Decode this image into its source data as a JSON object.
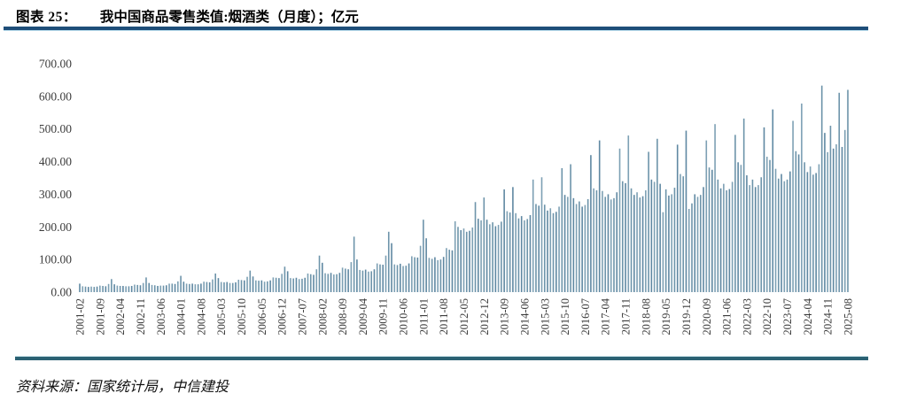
{
  "header": {
    "fig_label": "图表 25：",
    "fig_title": "我中国商品零售类值:烟酒类（月度）；亿元"
  },
  "footer": {
    "source": "资料来源：国家统计局，中信建投"
  },
  "colors": {
    "title_rule": "#1e4e79",
    "title_rule_edge": "#b9dcec",
    "bottom_rule": "#2b6173",
    "bottom_rule_edge": "#c9e3ea",
    "axis_text": "#3c3c3c"
  },
  "chart_data": {
    "type": "bar",
    "title": "我中国商品零售类值:烟酒类（月度）；亿元",
    "xlabel": "",
    "ylabel": "亿元",
    "ylim": [
      0,
      700
    ],
    "ytick_step": 100,
    "ytick_labels": [
      "0.00",
      "100.00",
      "200.00",
      "300.00",
      "400.00",
      "500.00",
      "600.00",
      "700.00"
    ],
    "grid": false,
    "legend": false,
    "xtick_every": 7,
    "xtick_labels": [
      "2001-02",
      "2001-09",
      "2002-04",
      "2002-11",
      "2003-06",
      "2004-01",
      "2004-08",
      "2005-03",
      "2005-10",
      "2006-05",
      "2006-12",
      "2007-07",
      "2008-02",
      "2008-09",
      "2009-04",
      "2009-11",
      "2010-06",
      "2011-01",
      "2011-08",
      "2012-05",
      "2012-12",
      "2013-09",
      "2014-06",
      "2015-03",
      "2015-10",
      "2016-07",
      "2017-04",
      "2017-11",
      "2018-08",
      "2019-05",
      "2019-12",
      "2020-09",
      "2021-06",
      "2022-03",
      "2022-10",
      "2023-07",
      "2024-04",
      "2024-11",
      "2025-08"
    ],
    "bar_colors": [
      "#5f88a2",
      "#7da0b4",
      "#6d94aa"
    ],
    "x": [
      "2001-02",
      "2001-03",
      "2001-04",
      "2001-05",
      "2001-06",
      "2001-07",
      "2001-08",
      "2001-09",
      "2001-10",
      "2001-11",
      "2001-12",
      "2002-01",
      "2002-02",
      "2002-03",
      "2002-04",
      "2002-05",
      "2002-06",
      "2002-07",
      "2002-08",
      "2002-09",
      "2002-10",
      "2002-11",
      "2002-12",
      "2003-01",
      "2003-02",
      "2003-03",
      "2003-04",
      "2003-05",
      "2003-06",
      "2003-07",
      "2003-08",
      "2003-09",
      "2003-10",
      "2003-11",
      "2003-12",
      "2004-01",
      "2004-02",
      "2004-03",
      "2004-04",
      "2004-05",
      "2004-06",
      "2004-07",
      "2004-08",
      "2004-09",
      "2004-10",
      "2004-11",
      "2004-12",
      "2005-01",
      "2005-02",
      "2005-03",
      "2005-04",
      "2005-05",
      "2005-06",
      "2005-07",
      "2005-08",
      "2005-09",
      "2005-10",
      "2005-11",
      "2005-12",
      "2006-01",
      "2006-02",
      "2006-03",
      "2006-04",
      "2006-05",
      "2006-06",
      "2006-07",
      "2006-08",
      "2006-09",
      "2006-10",
      "2006-11",
      "2006-12",
      "2007-01",
      "2007-02",
      "2007-03",
      "2007-04",
      "2007-05",
      "2007-06",
      "2007-07",
      "2007-08",
      "2007-09",
      "2007-10",
      "2007-11",
      "2007-12",
      "2008-01",
      "2008-02",
      "2008-03",
      "2008-04",
      "2008-05",
      "2008-06",
      "2008-07",
      "2008-08",
      "2008-09",
      "2008-10",
      "2008-11",
      "2008-12",
      "2009-01",
      "2009-02",
      "2009-03",
      "2009-04",
      "2009-05",
      "2009-06",
      "2009-07",
      "2009-08",
      "2009-09",
      "2009-10",
      "2009-11",
      "2009-12",
      "2010-01",
      "2010-02",
      "2010-03",
      "2010-04",
      "2010-05",
      "2010-06",
      "2010-07",
      "2010-08",
      "2010-09",
      "2010-10",
      "2010-11",
      "2010-12",
      "2011-01",
      "2011-02",
      "2011-03",
      "2011-04",
      "2011-05",
      "2011-06",
      "2011-07",
      "2011-08",
      "2011-09",
      "2011-10",
      "2011-11",
      "2011-12",
      "2012-03",
      "2012-04",
      "2012-05",
      "2012-06",
      "2012-07",
      "2012-08",
      "2012-09",
      "2012-10",
      "2012-11",
      "2012-12",
      "2013-03",
      "2013-04",
      "2013-05",
      "2013-06",
      "2013-07",
      "2013-08",
      "2013-09",
      "2013-10",
      "2013-11",
      "2013-12",
      "2014-03",
      "2014-04",
      "2014-05",
      "2014-06",
      "2014-07",
      "2014-08",
      "2014-09",
      "2014-10",
      "2014-11",
      "2014-12",
      "2015-03",
      "2015-04",
      "2015-05",
      "2015-06",
      "2015-07",
      "2015-08",
      "2015-09",
      "2015-10",
      "2015-11",
      "2015-12",
      "2016-03",
      "2016-04",
      "2016-05",
      "2016-06",
      "2016-07",
      "2016-08",
      "2016-09",
      "2016-10",
      "2016-11",
      "2016-12",
      "2017-03",
      "2017-04",
      "2017-05",
      "2017-06",
      "2017-07",
      "2017-08",
      "2017-09",
      "2017-10",
      "2017-11",
      "2017-12",
      "2018-03",
      "2018-04",
      "2018-05",
      "2018-06",
      "2018-07",
      "2018-08",
      "2018-09",
      "2018-10",
      "2018-11",
      "2018-12",
      "2019-03",
      "2019-04",
      "2019-05",
      "2019-06",
      "2019-07",
      "2019-08",
      "2019-09",
      "2019-10",
      "2019-11",
      "2019-12",
      "2020-03",
      "2020-04",
      "2020-05",
      "2020-06",
      "2020-07",
      "2020-08",
      "2020-09",
      "2020-10",
      "2020-11",
      "2020-12",
      "2021-03",
      "2021-04",
      "2021-05",
      "2021-06",
      "2021-07",
      "2021-08",
      "2021-09",
      "2021-10",
      "2021-11",
      "2021-12",
      "2022-03",
      "2022-04",
      "2022-05",
      "2022-06",
      "2022-07",
      "2022-08",
      "2022-09",
      "2022-10",
      "2022-11",
      "2022-12",
      "2023-03",
      "2023-04",
      "2023-05",
      "2023-06",
      "2023-07",
      "2023-08",
      "2023-09",
      "2023-10",
      "2023-11",
      "2023-12",
      "2024-03",
      "2024-04",
      "2024-05",
      "2024-06",
      "2024-07",
      "2024-08",
      "2024-09",
      "2024-10",
      "2024-11",
      "2024-12",
      "2025-03",
      "2025-04",
      "2025-05",
      "2025-06",
      "2025-07",
      "2025-08"
    ],
    "values": [
      26,
      18,
      17,
      16,
      17,
      16,
      17,
      20,
      19,
      18,
      25,
      40,
      24,
      20,
      19,
      19,
      18,
      18,
      19,
      23,
      22,
      21,
      28,
      45,
      28,
      22,
      21,
      19,
      20,
      20,
      21,
      26,
      26,
      25,
      33,
      50,
      32,
      26,
      25,
      26,
      24,
      24,
      26,
      32,
      31,
      30,
      39,
      57,
      43,
      31,
      30,
      31,
      28,
      28,
      30,
      38,
      37,
      36,
      47,
      66,
      48,
      36,
      35,
      36,
      32,
      33,
      36,
      45,
      44,
      43,
      56,
      78,
      64,
      43,
      42,
      44,
      40,
      41,
      44,
      57,
      55,
      53,
      70,
      112,
      90,
      58,
      56,
      59,
      54,
      55,
      59,
      75,
      72,
      70,
      92,
      170,
      100,
      68,
      66,
      69,
      63,
      64,
      70,
      88,
      85,
      84,
      112,
      185,
      150,
      85,
      83,
      87,
      80,
      81,
      88,
      110,
      107,
      106,
      142,
      222,
      165,
      105,
      102,
      107,
      98,
      100,
      108,
      135,
      130,
      128,
      217,
      200,
      190,
      195,
      185,
      188,
      198,
      276,
      225,
      220,
      290,
      222,
      208,
      214,
      202,
      206,
      216,
      315,
      248,
      244,
      322,
      242,
      226,
      233,
      220,
      224,
      236,
      345,
      270,
      265,
      352,
      268,
      250,
      257,
      242,
      246,
      262,
      380,
      298,
      292,
      392,
      288,
      270,
      278,
      262,
      267,
      285,
      420,
      318,
      312,
      465,
      310,
      292,
      300,
      284,
      288,
      306,
      440,
      340,
      334,
      480,
      318,
      298,
      306,
      290,
      294,
      312,
      430,
      345,
      338,
      470,
      332,
      245,
      315,
      296,
      300,
      320,
      452,
      362,
      355,
      495,
      255,
      272,
      300,
      292,
      298,
      322,
      465,
      382,
      375,
      515,
      345,
      318,
      332,
      312,
      316,
      338,
      482,
      398,
      390,
      532,
      358,
      328,
      345,
      322,
      328,
      352,
      505,
      415,
      405,
      560,
      378,
      348,
      362,
      340,
      345,
      370,
      525,
      432,
      422,
      578,
      398,
      368,
      385,
      360,
      365,
      392,
      633,
      488,
      429,
      510,
      440,
      453,
      611,
      445,
      497,
      620
    ]
  }
}
